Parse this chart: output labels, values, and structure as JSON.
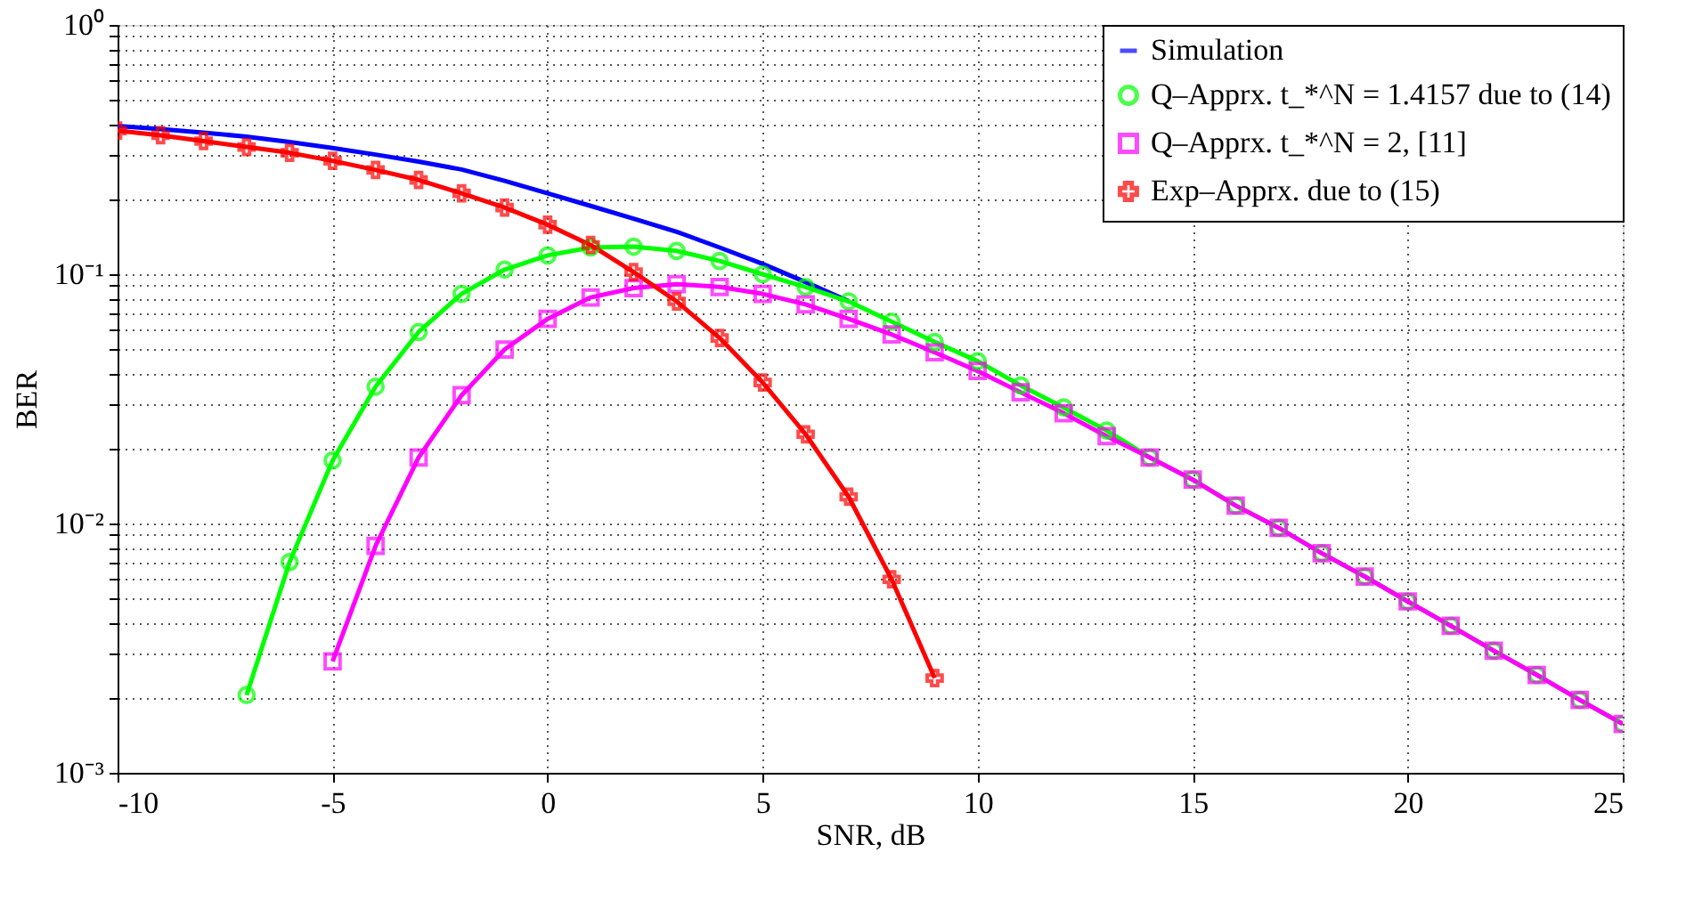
{
  "chart_data": {
    "type": "line",
    "xlabel": "SNR, dB",
    "ylabel": "BER",
    "log": "y",
    "grid": true,
    "legend": "top right",
    "line_style": "solid",
    "x": [
      -10,
      -9,
      -8,
      -7,
      -6,
      -5,
      -4,
      -3,
      -2,
      -1,
      0,
      1,
      2,
      3,
      4,
      5,
      6,
      7,
      8,
      9,
      10,
      11,
      12,
      13,
      14,
      15,
      16,
      17,
      18,
      19,
      20,
      21,
      22,
      23,
      24,
      25
    ],
    "xlim": [
      -10,
      25
    ],
    "xticks": [
      -10,
      -5,
      0,
      5,
      10,
      15,
      20,
      25
    ],
    "ylim": [
      0.001,
      1
    ],
    "yticks": [
      {
        "value": 0.001,
        "label": "10⁻³"
      },
      {
        "value": 0.002,
        "label": null
      },
      {
        "value": 0.003,
        "label": null
      },
      {
        "value": 0.004,
        "label": null
      },
      {
        "value": 0.005,
        "label": null
      },
      {
        "value": 0.006,
        "label": null
      },
      {
        "value": 0.007,
        "label": null
      },
      {
        "value": 0.008,
        "label": null
      },
      {
        "value": 0.009,
        "label": null
      },
      {
        "value": 0.01,
        "label": "10⁻²"
      },
      {
        "value": 0.02,
        "label": null
      },
      {
        "value": 0.03,
        "label": null
      },
      {
        "value": 0.04,
        "label": null
      },
      {
        "value": 0.05,
        "label": null
      },
      {
        "value": 0.06,
        "label": null
      },
      {
        "value": 0.07,
        "label": null
      },
      {
        "value": 0.08,
        "label": null
      },
      {
        "value": 0.09,
        "label": null
      },
      {
        "value": 0.1,
        "label": "10⁻¹"
      },
      {
        "value": 0.2,
        "label": null
      },
      {
        "value": 0.3,
        "label": null
      },
      {
        "value": 0.4,
        "label": null
      },
      {
        "value": 0.5,
        "label": null
      },
      {
        "value": 0.6,
        "label": null
      },
      {
        "value": 0.7,
        "label": null
      },
      {
        "value": 0.8,
        "label": null
      },
      {
        "value": 0.9,
        "label": null
      },
      {
        "value": 1,
        "label": "10⁰"
      }
    ],
    "series": [
      {
        "name": "Simulation",
        "color": "#0000ff",
        "values": [
          0.393,
          0.382,
          0.37,
          0.356,
          0.339,
          0.321,
          0.302,
          0.283,
          0.263,
          0.237,
          0.211,
          0.188,
          0.167,
          0.148,
          0.128,
          0.11,
          0.093,
          0.078,
          null,
          null,
          null,
          null,
          null,
          null,
          null,
          null,
          null,
          null,
          null,
          null,
          null,
          null,
          null,
          null,
          null,
          null
        ]
      },
      {
        "name": "Q–Apprx. t_*^N = 1.4157 due to (14)",
        "color": "#00ff00",
        "marker": "circle",
        "values": [
          null,
          null,
          null,
          0.00205,
          0.007,
          0.0179,
          0.0354,
          0.0586,
          0.0834,
          0.1044,
          0.119,
          0.128,
          0.129,
          0.124,
          0.113,
          0.1,
          0.0889,
          0.0778,
          0.0645,
          0.0535,
          0.0448,
          0.0358,
          0.0292,
          0.0236,
          0.0184,
          0.015,
          0.0118,
          0.0096,
          0.0076,
          0.00613,
          0.00487,
          0.00389,
          0.00309,
          0.00247,
          0.00196,
          0.00157
        ]
      },
      {
        "name": "Q–Apprx. t_*^N = 2, [11]",
        "color": "#ff00ff",
        "marker": "square",
        "values": [
          null,
          null,
          null,
          null,
          null,
          0.0028,
          0.00814,
          0.0184,
          0.0327,
          0.0499,
          0.0662,
          0.0807,
          0.088,
          0.0912,
          0.0889,
          0.0834,
          0.0757,
          0.0662,
          0.0573,
          0.0486,
          0.0409,
          0.0336,
          0.0277,
          0.0224,
          0.0184,
          0.015,
          0.0118,
          0.0096,
          0.0076,
          0.00613,
          0.00487,
          0.00389,
          0.00309,
          0.00247,
          0.00196,
          0.00157
        ]
      },
      {
        "name": "Exp–Apprx. due to (15)",
        "color": "#ff0000",
        "marker": "cross",
        "values": [
          0.377,
          0.361,
          0.342,
          0.324,
          0.307,
          0.285,
          0.262,
          0.239,
          0.211,
          0.185,
          0.158,
          0.131,
          0.102,
          0.0778,
          0.0555,
          0.0368,
          0.0228,
          0.0128,
          0.00597,
          0.0024,
          null,
          null,
          null,
          null,
          null,
          null,
          null,
          null,
          null,
          null,
          null,
          null,
          null,
          null,
          null,
          null
        ]
      }
    ]
  }
}
